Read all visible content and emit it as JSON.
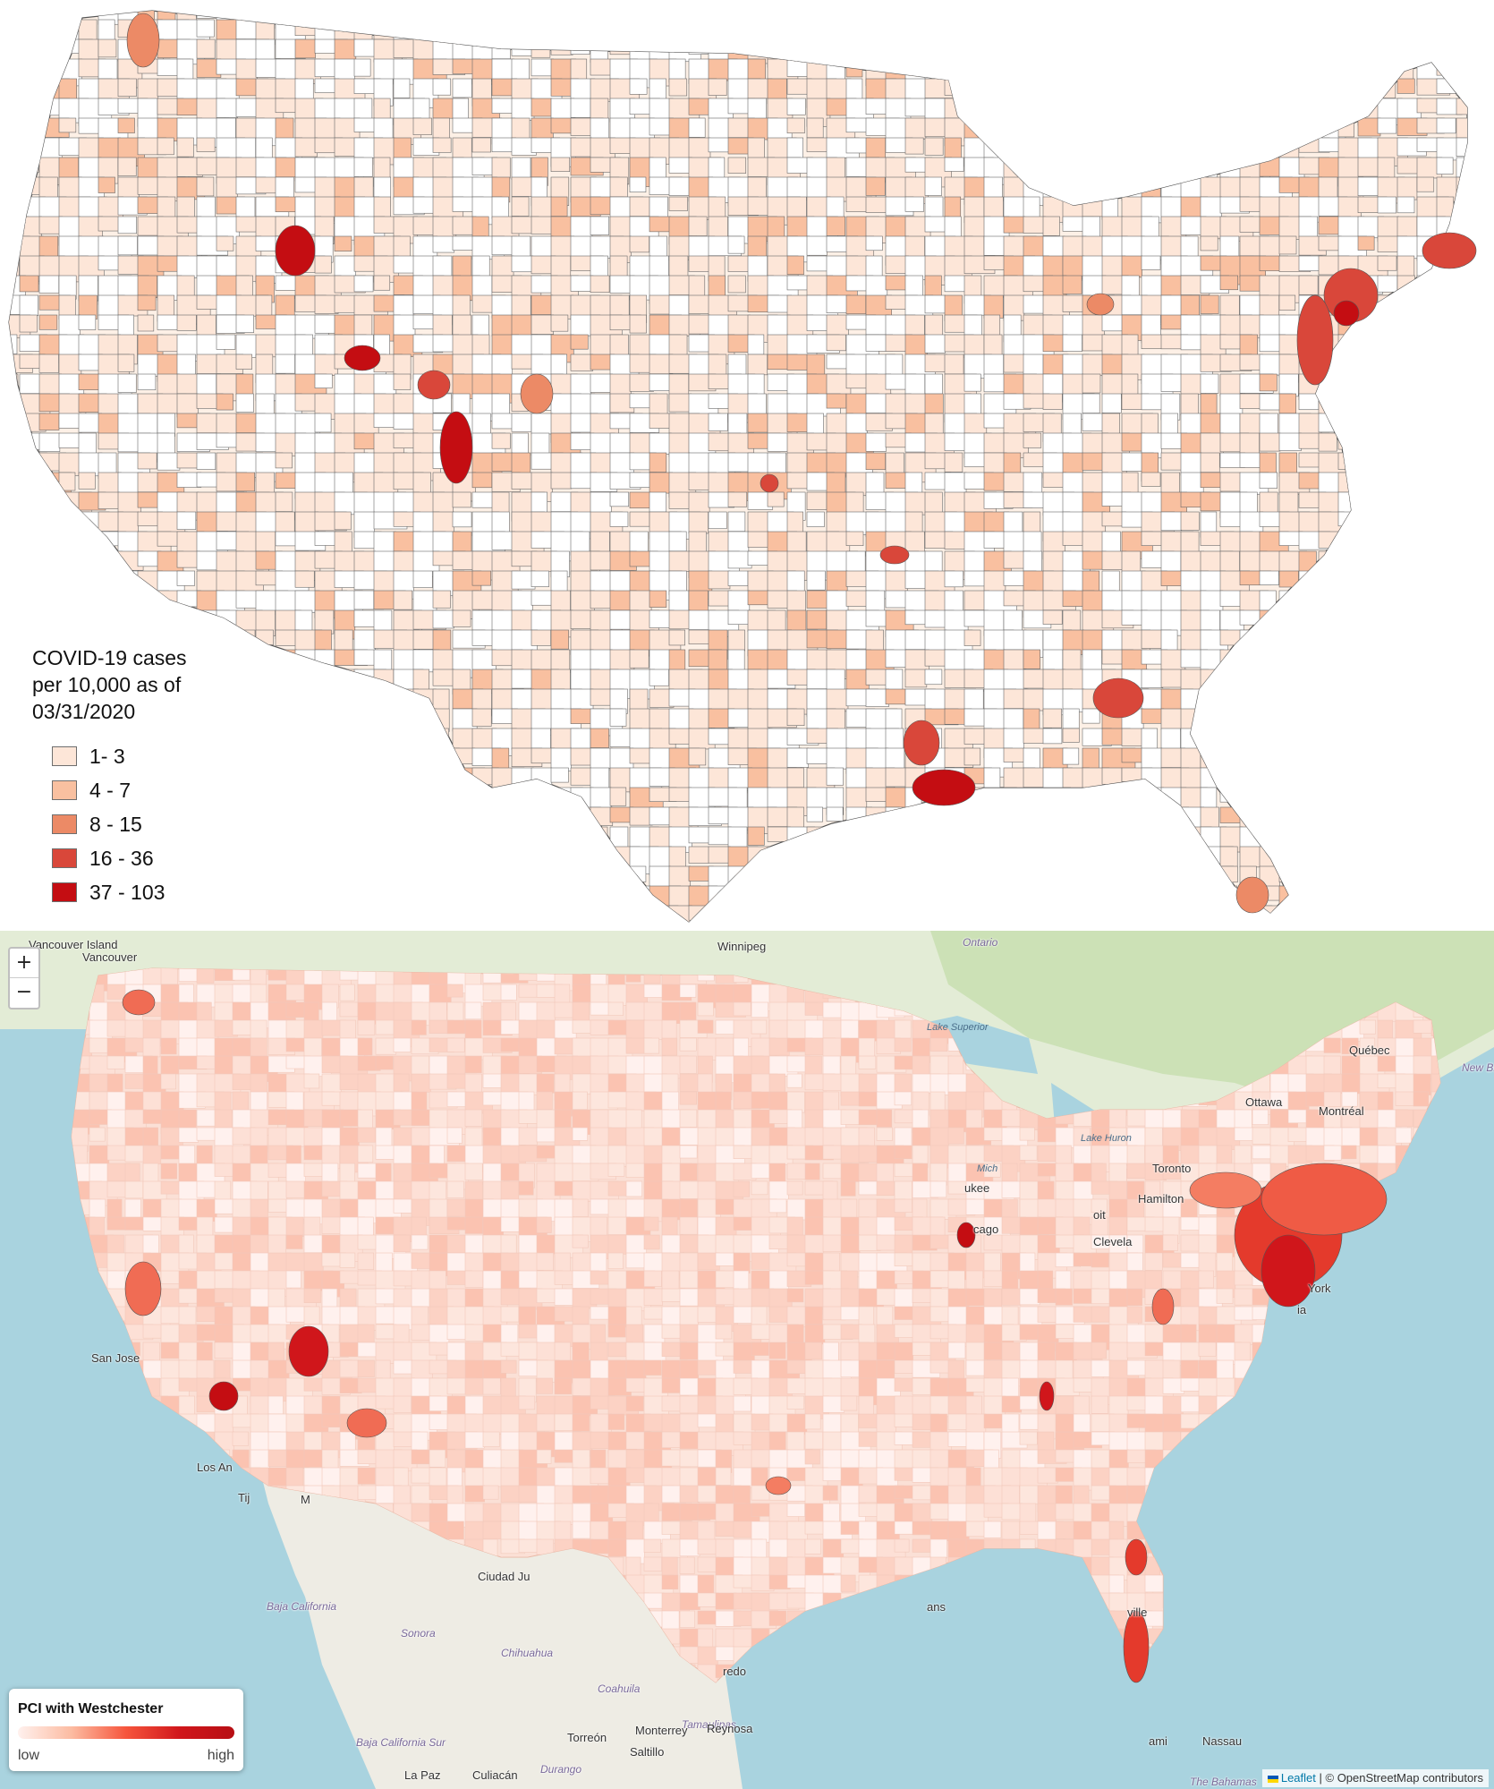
{
  "top_map": {
    "legend": {
      "title_lines": [
        "COVID-19 cases",
        "per 10,000 as of",
        "03/31/2020"
      ],
      "bins": [
        {
          "label": "1- 3",
          "color": "#fde6d8"
        },
        {
          "label": "4 - 7",
          "color": "#f9c0a0"
        },
        {
          "label": "8 - 15",
          "color": "#ec8a66"
        },
        {
          "label": "16 - 36",
          "color": "#d9473a"
        },
        {
          "label": "37 - 103",
          "color": "#c40d12"
        }
      ]
    },
    "no_data_color": "#ffffff",
    "border_color": "#555555"
  },
  "bottom_map": {
    "zoom": {
      "in_label": "+",
      "out_label": "−"
    },
    "legend": {
      "title": "PCI with Westchester",
      "low_label": "low",
      "high_label": "high"
    },
    "attribution": {
      "leaflet": "Leaflet",
      "separator": " | ",
      "osm": "© OpenStreetMap contributors"
    },
    "place_labels": {
      "vancouver_island": "Vancouver Island",
      "vancouver": "Vancouver",
      "winnipeg": "Winnipeg",
      "ontario": "Ontario",
      "lake_superior": "Lake Superior",
      "quebec": "Québec",
      "new_brunswick": "New Bru",
      "ottawa": "Ottawa",
      "montreal": "Montréal",
      "lake_huron": "Lake Huron",
      "toronto": "Toronto",
      "hamilton": "Hamilton",
      "michigan": "Mich",
      "milwaukee": "ukee",
      "chicago": "cago",
      "detroit": "oit",
      "cleveland": "Clevela",
      "new_york": "York",
      "philadelphia": "ia",
      "san_jose": "San Jose",
      "los_angeles": "Los An",
      "tijuana": "Tij",
      "mexicali": "M",
      "ciudad_juarez": "Ciudad Ju",
      "baja_california": "Baja California",
      "sonora": "Sonora",
      "chihuahua": "Chihuahua",
      "coahuila": "Coahuila",
      "tamaulipas": "Tamaulipas",
      "monterrey": "Monterrey",
      "reynosa": "Reynosa",
      "saltillo": "Saltillo",
      "torreon": "Torreón",
      "houston": "ans",
      "jacksonville": "ville",
      "miami": "ami",
      "nassau": "Nassau",
      "baja_california_sur": "Baja California Sur",
      "la_paz": "La Paz",
      "culiacan": "Culiacán",
      "durango": "Durango",
      "laredo": "redo",
      "bahamas": "The Bahamas"
    }
  }
}
